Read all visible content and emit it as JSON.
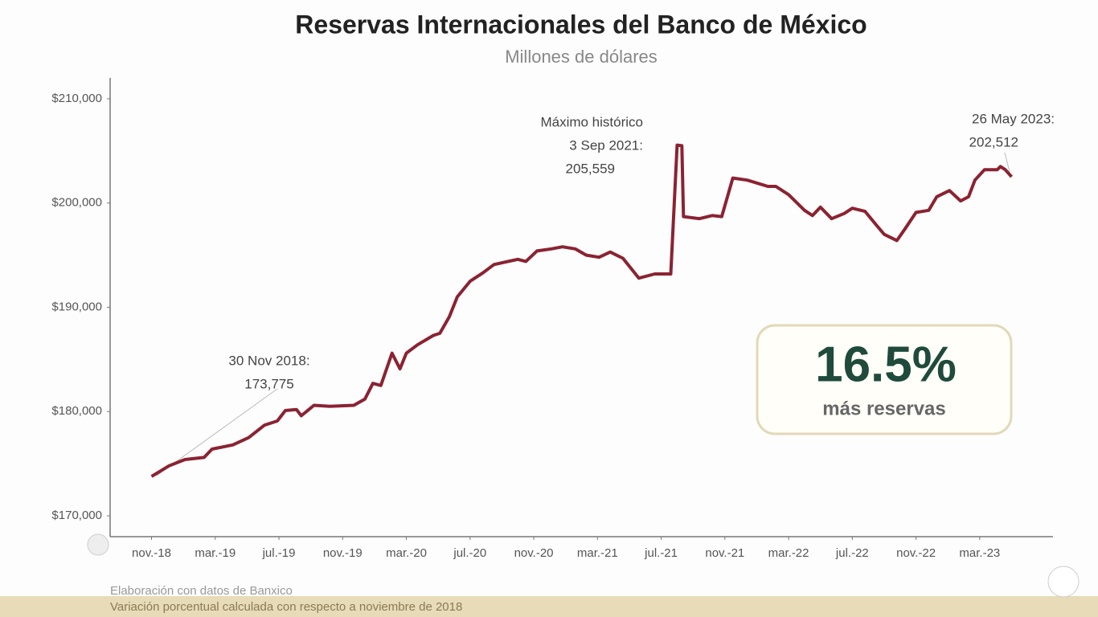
{
  "chart_data": {
    "type": "line",
    "title": "Reservas Internacionales del Banco de México",
    "subtitle": "Millones de dólares",
    "x": [
      0,
      1.1,
      2.1,
      3.3,
      3.8,
      5.1,
      6.1,
      7.1,
      7.9,
      8.4,
      9.1,
      9.4,
      10.2,
      11.2,
      12.7,
      13.4,
      13.9,
      14.4,
      15.1,
      15.6,
      16.0,
      16.7,
      17.7,
      18.1,
      18.7,
      19.2,
      20.0,
      20.8,
      21.5,
      23.0,
      23.5,
      24.2,
      25.1,
      25.8,
      26.6,
      27.3,
      28.1,
      28.8,
      29.6,
      30.6,
      31.6,
      32.6,
      33.0,
      33.3,
      33.4,
      34.4,
      35.2,
      35.8,
      36.5,
      37.4,
      38.7,
      39.2,
      40.0,
      41.0,
      41.5,
      42.0,
      42.7,
      43.5,
      44.0,
      44.8,
      45.5,
      46.0,
      46.8,
      47.3,
      48.0,
      48.8,
      49.3,
      50.1,
      50.8,
      51.3,
      51.7,
      52.3,
      53.1,
      53.3,
      53.6,
      54.0
    ],
    "values": [
      173775,
      174800,
      175400,
      175600,
      176400,
      176800,
      177500,
      178700,
      179100,
      180100,
      180200,
      179600,
      180600,
      180500,
      180600,
      181200,
      182700,
      182500,
      185600,
      184100,
      185600,
      186400,
      187300,
      187500,
      189100,
      191000,
      192500,
      193300,
      194100,
      194600,
      194400,
      195400,
      195600,
      195800,
      195600,
      195000,
      194800,
      195300,
      194700,
      192800,
      193200,
      193200,
      205559,
      205500,
      198700,
      198500,
      198800,
      198700,
      202400,
      202200,
      201600,
      201600,
      200800,
      199300,
      198800,
      199600,
      198500,
      199000,
      199500,
      199200,
      197900,
      197000,
      196400,
      197500,
      199100,
      199300,
      200600,
      201200,
      200200,
      200600,
      202200,
      203200,
      203200,
      203500,
      203200,
      202512
    ],
    "color": "#8b2332",
    "xlim": [
      -2.6,
      56.6
    ],
    "xticks": [
      {
        "value": 0,
        "label": "nov.-18"
      },
      {
        "value": 4,
        "label": "mar.-19"
      },
      {
        "value": 8,
        "label": "jul.-19"
      },
      {
        "value": 12,
        "label": "nov.-19"
      },
      {
        "value": 16,
        "label": "mar.-20"
      },
      {
        "value": 20,
        "label": "jul.-20"
      },
      {
        "value": 24,
        "label": "nov.-20"
      },
      {
        "value": 28,
        "label": "mar.-21"
      },
      {
        "value": 32,
        "label": "jul.-21"
      },
      {
        "value": 36,
        "label": "nov.-21"
      },
      {
        "value": 40,
        "label": "mar.-22"
      },
      {
        "value": 44,
        "label": "jul.-22"
      },
      {
        "value": 48,
        "label": "nov.-22"
      },
      {
        "value": 52,
        "label": "mar.-23"
      }
    ],
    "ylim": [
      168000,
      212000
    ],
    "yticks": [
      {
        "value": 170000,
        "label": "$170,000"
      },
      {
        "value": 180000,
        "label": "$180,000"
      },
      {
        "value": 190000,
        "label": "$190,000"
      },
      {
        "value": 200000,
        "label": "$200,000"
      },
      {
        "value": 210000,
        "label": "$210,000"
      }
    ],
    "grid": false,
    "annotations": [
      {
        "lines": [
          "30 Nov 2018:",
          "173,775"
        ]
      },
      {
        "lines": [
          "Máximo histórico",
          "3 Sep 2021:",
          "205,559"
        ]
      },
      {
        "lines": [
          "26 May 2023:",
          "202,512"
        ]
      }
    ],
    "callout": {
      "value_label": "16.5%",
      "text": "más reservas"
    },
    "notes": [
      "Elaboración con datos de Banxico",
      "Variación porcentual calculada con respecto a noviembre de 2018"
    ]
  }
}
